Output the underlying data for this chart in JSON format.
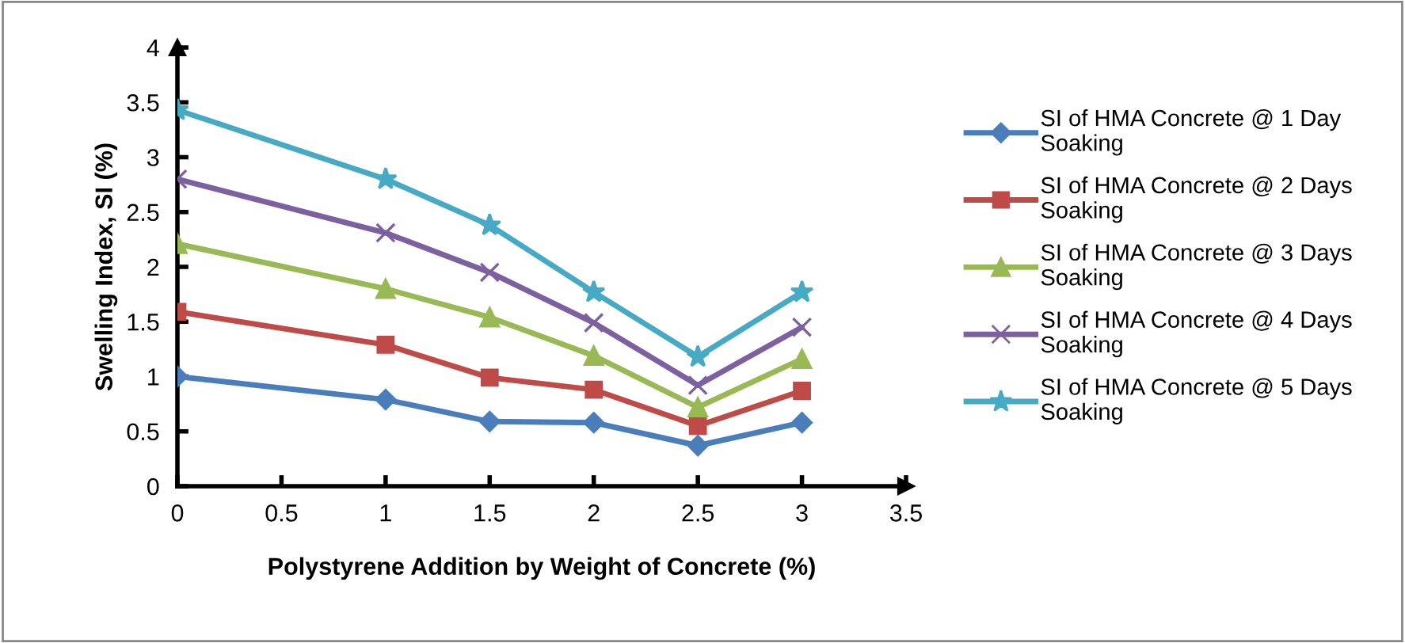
{
  "chart_data": {
    "type": "line",
    "xlabel": "Polystyrene Addition by Weight of Concrete (%)",
    "ylabel": "Swelling Index, SI (%)",
    "x": [
      0,
      1,
      1.5,
      2,
      2.5,
      3
    ],
    "series": [
      {
        "name": "SI of HMA Concrete @ 1 Day Soaking",
        "color": "#4a7ebb",
        "marker": "diamond",
        "values": [
          1.0,
          0.79,
          0.59,
          0.58,
          0.37,
          0.58
        ]
      },
      {
        "name": "SI of HMA Concrete @ 2 Days Soaking",
        "color": "#be4b48",
        "marker": "square",
        "values": [
          1.59,
          1.29,
          0.99,
          0.88,
          0.55,
          0.87
        ]
      },
      {
        "name": "SI of HMA Concrete @ 3 Days Soaking",
        "color": "#98b954",
        "marker": "triangle",
        "values": [
          2.21,
          1.8,
          1.54,
          1.19,
          0.72,
          1.16
        ]
      },
      {
        "name": "SI of HMA Concrete @ 4 Days Soaking",
        "color": "#7d60a0",
        "marker": "cross",
        "values": [
          2.8,
          2.31,
          1.95,
          1.49,
          0.92,
          1.45
        ]
      },
      {
        "name": "SI of HMA Concrete @ 5 Days Soaking",
        "color": "#46aac5",
        "marker": "star",
        "values": [
          3.43,
          2.8,
          2.38,
          1.77,
          1.18,
          1.77
        ]
      }
    ],
    "xlim": [
      0,
      3.5
    ],
    "xticks": [
      0,
      0.5,
      1,
      1.5,
      2,
      2.5,
      3,
      3.5
    ],
    "ylim": [
      0,
      4
    ],
    "yticks": [
      0,
      0.5,
      1,
      1.5,
      2,
      2.5,
      3,
      3.5,
      4
    ],
    "grid": false,
    "legend": "right",
    "line_style": "solid"
  }
}
